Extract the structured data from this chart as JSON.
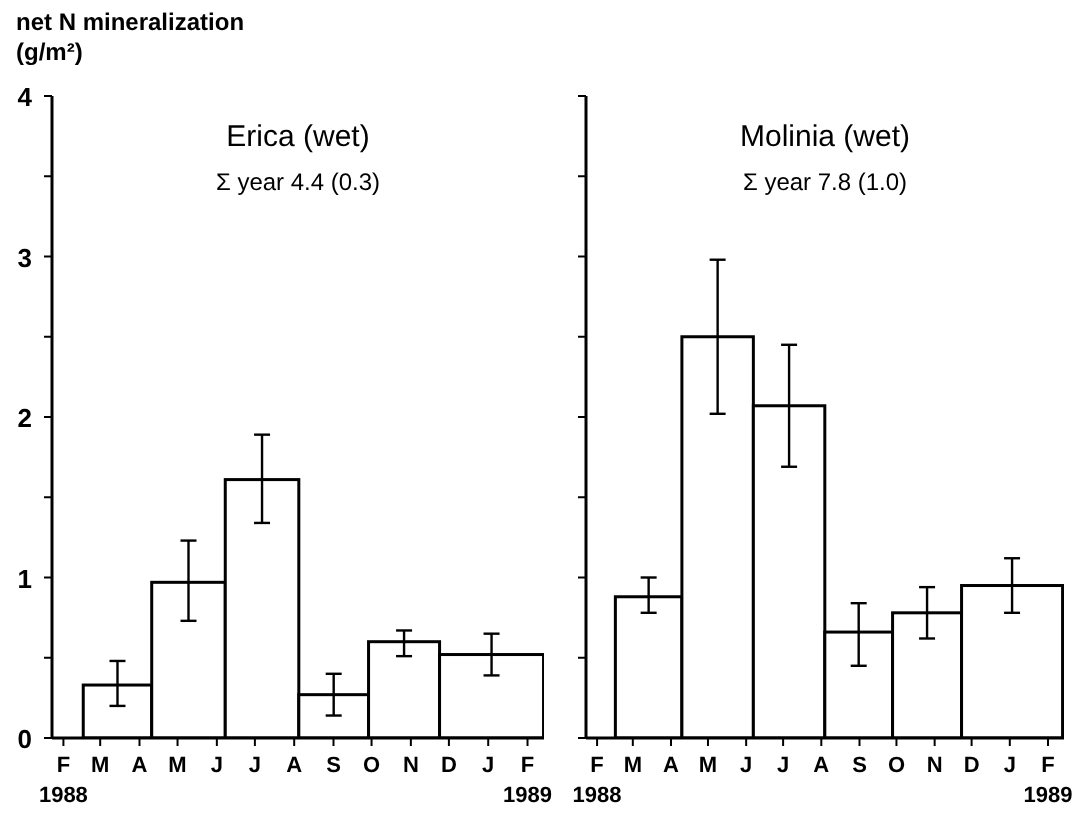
{
  "chart_data": [
    {
      "type": "histogram",
      "title": "Erica (wet)",
      "subtitle": "Σ year 4.4 (0.3)",
      "ylabel": "net N mineralization\n(g/m²)",
      "bins": [
        "1988-03-01",
        "1988-04-24",
        "1988-06-21",
        "1988-08-18",
        "1988-10-12",
        "1988-12-07",
        "1989-02-27"
      ],
      "values": [
        0.33,
        0.97,
        1.61,
        0.27,
        0.6,
        0.52
      ],
      "errors": [
        [
          0.2,
          0.48
        ],
        [
          0.73,
          1.23
        ],
        [
          1.34,
          1.89
        ],
        [
          0.14,
          0.4
        ],
        [
          0.51,
          0.67
        ],
        [
          0.39,
          0.65
        ]
      ],
      "color": "#000000",
      "xlim": [
        "1988-02-06",
        "1989-02-28"
      ],
      "xticks": [
        {
          "value": "1988-02-15",
          "label": "F\n1988"
        },
        {
          "value": "1988-03-15",
          "label": "M"
        },
        {
          "value": "1988-04-15",
          "label": "A"
        },
        {
          "value": "1988-05-15",
          "label": "M"
        },
        {
          "value": "1988-06-15",
          "label": "J"
        },
        {
          "value": "1988-07-15",
          "label": "J"
        },
        {
          "value": "1988-08-15",
          "label": "A"
        },
        {
          "value": "1988-09-15",
          "label": "S"
        },
        {
          "value": "1988-10-15",
          "label": "O"
        },
        {
          "value": "1988-11-15",
          "label": "N"
        },
        {
          "value": "1988-12-15",
          "label": "D"
        },
        {
          "value": "1989-01-15",
          "label": "J"
        },
        {
          "value": "1989-02-15",
          "label": "F\n1989"
        }
      ],
      "ylim": [
        0,
        4
      ],
      "yticks": [
        0,
        {
          "value": 0.5,
          "label": null
        },
        1,
        {
          "value": 1.5,
          "label": null
        },
        2,
        {
          "value": 2.5,
          "label": null
        },
        3,
        {
          "value": 3.5,
          "label": null
        },
        4
      ]
    },
    {
      "type": "histogram",
      "title": "Molinia (wet)",
      "subtitle": "Σ year 7.8 (1.0)",
      "bins": [
        "1988-03-01",
        "1988-04-24",
        "1988-06-21",
        "1988-08-18",
        "1988-10-12",
        "1988-12-07",
        "1989-02-27"
      ],
      "values": [
        0.88,
        2.5,
        2.07,
        0.66,
        0.78,
        0.95
      ],
      "errors": [
        [
          0.78,
          1.0
        ],
        [
          2.02,
          2.98
        ],
        [
          1.69,
          2.45
        ],
        [
          0.45,
          0.84
        ],
        [
          0.62,
          0.94
        ],
        [
          0.78,
          1.12
        ]
      ],
      "color": "#000000",
      "xlim": [
        "1988-02-06",
        "1989-02-28"
      ],
      "xticks": [
        {
          "value": "1988-02-15",
          "label": "F\n1988"
        },
        {
          "value": "1988-03-15",
          "label": "M"
        },
        {
          "value": "1988-04-15",
          "label": "A"
        },
        {
          "value": "1988-05-15",
          "label": "M"
        },
        {
          "value": "1988-06-15",
          "label": "J"
        },
        {
          "value": "1988-07-15",
          "label": "J"
        },
        {
          "value": "1988-08-15",
          "label": "A"
        },
        {
          "value": "1988-09-15",
          "label": "S"
        },
        {
          "value": "1988-10-15",
          "label": "O"
        },
        {
          "value": "1988-11-15",
          "label": "N"
        },
        {
          "value": "1988-12-15",
          "label": "D"
        },
        {
          "value": "1989-01-15",
          "label": "J"
        },
        {
          "value": "1989-02-15",
          "label": "F\n1989"
        }
      ],
      "ylim": [
        0,
        4
      ],
      "yticks": [
        0,
        {
          "value": 0.5,
          "label": null
        },
        1,
        {
          "value": 1.5,
          "label": null
        },
        2,
        {
          "value": 2.5,
          "label": null
        },
        3,
        {
          "value": 3.5,
          "label": null
        },
        4
      ],
      "tick_labels": "x"
    }
  ]
}
